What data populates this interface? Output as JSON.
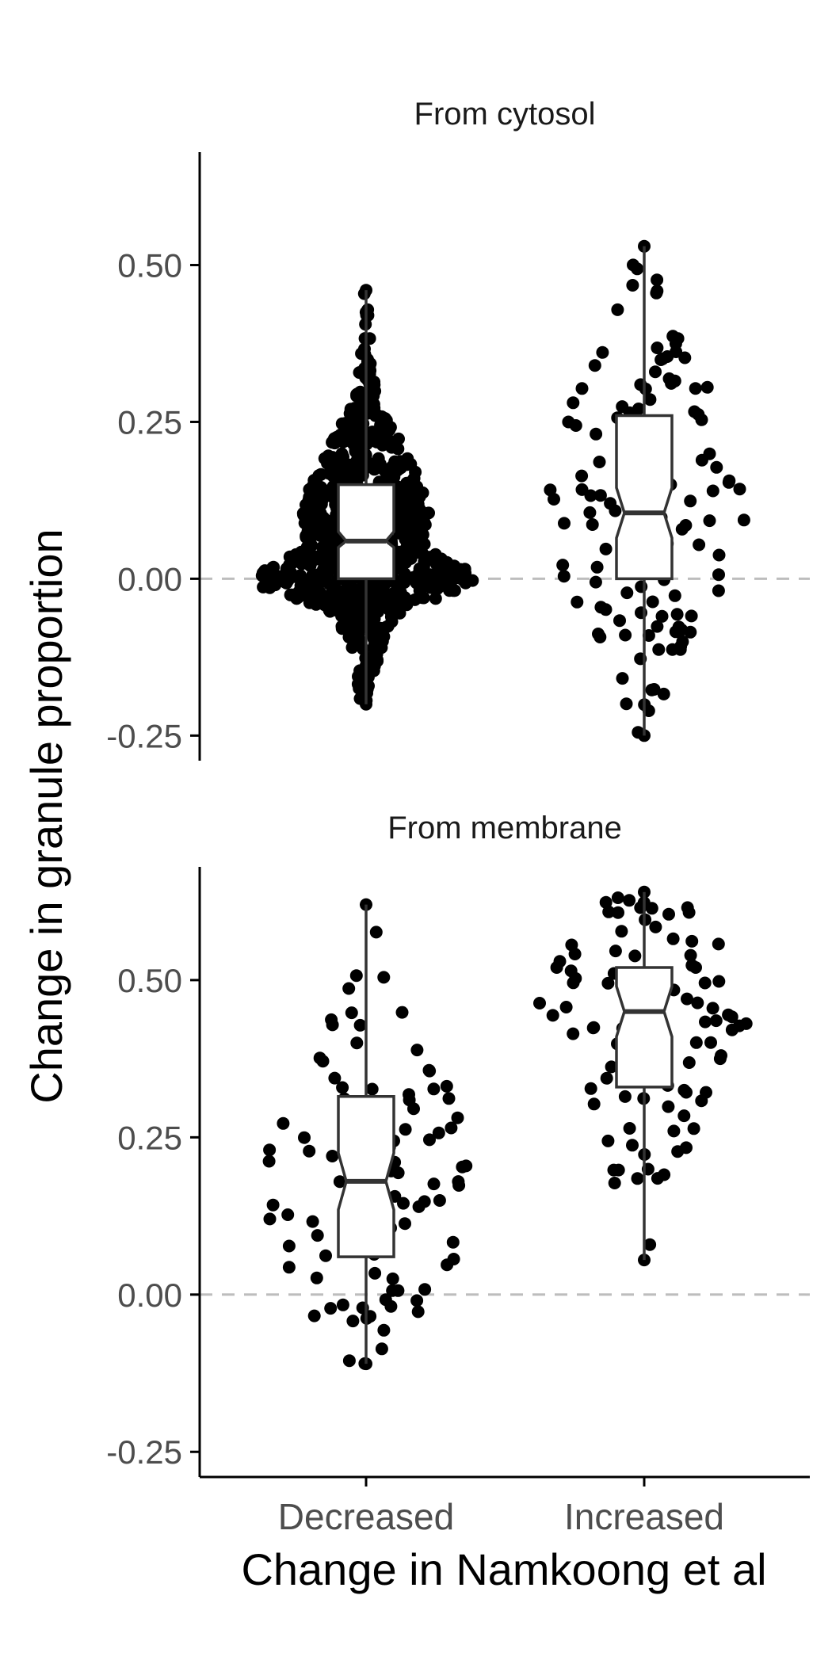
{
  "chart_data": {
    "type": "scatter",
    "subtype": "beeswarm-with-notched-boxplot",
    "xlabel": "Change in Namkoong et al",
    "ylabel": "Change in granule proportion",
    "categories": [
      "Decreased",
      "Increased"
    ],
    "yticks": [
      -0.25,
      0.0,
      0.25,
      0.5
    ],
    "ytick_labels": [
      "-0.25",
      "0.00",
      "0.25",
      "0.50"
    ],
    "reference_line": 0,
    "colors": {
      "points": "#000000",
      "box": "#333333",
      "reference": "#bdbdbd",
      "axis": "#000000"
    },
    "panels": [
      {
        "title": "From cytosol",
        "ylim": [
          -0.29,
          0.68
        ],
        "groups": [
          {
            "category": "Decreased",
            "box": {
              "min": -0.2,
              "q1": 0.0,
              "median": 0.06,
              "q3": 0.15,
              "max": 0.46,
              "notch_low": 0.05,
              "notch_high": 0.075
            },
            "density": [
              [
                -0.2,
                0.3
              ],
              [
                -0.1,
                1.0
              ],
              [
                -0.05,
                2.2
              ],
              [
                -0.01,
                6.5
              ],
              [
                0.02,
                6.0
              ],
              [
                0.05,
                3.5
              ],
              [
                0.1,
                3.8
              ],
              [
                0.15,
                3.3
              ],
              [
                0.2,
                2.4
              ],
              [
                0.25,
                1.4
              ],
              [
                0.3,
                0.6
              ],
              [
                0.35,
                0.3
              ],
              [
                0.4,
                0.2
              ],
              [
                0.46,
                0.15
              ]
            ],
            "n_points": 900
          },
          {
            "category": "Increased",
            "box": {
              "min": -0.25,
              "q1": 0.0,
              "median": 0.105,
              "q3": 0.26,
              "max": 0.53,
              "notch_low": 0.065,
              "notch_high": 0.145
            },
            "density": [
              [
                -0.25,
                0.2
              ],
              [
                -0.18,
                0.8
              ],
              [
                -0.1,
                1.6
              ],
              [
                -0.02,
                2.8
              ],
              [
                0.05,
                3.0
              ],
              [
                0.12,
                2.9
              ],
              [
                0.2,
                2.7
              ],
              [
                0.28,
                2.2
              ],
              [
                0.36,
                1.6
              ],
              [
                0.44,
                0.8
              ],
              [
                0.53,
                0.2
              ]
            ],
            "n_points": 130
          }
        ]
      },
      {
        "title": "From membrane",
        "ylim": [
          -0.29,
          0.68
        ],
        "groups": [
          {
            "category": "Decreased",
            "box": {
              "min": -0.11,
              "q1": 0.06,
              "median": 0.18,
              "q3": 0.315,
              "max": 0.62,
              "notch_low": 0.135,
              "notch_high": 0.225
            },
            "density": [
              [
                -0.11,
                0.5
              ],
              [
                -0.05,
                1.2
              ],
              [
                0.02,
                2.6
              ],
              [
                0.1,
                3.0
              ],
              [
                0.18,
                3.0
              ],
              [
                0.26,
                2.8
              ],
              [
                0.33,
                2.4
              ],
              [
                0.4,
                1.7
              ],
              [
                0.48,
                0.9
              ],
              [
                0.55,
                0.6
              ],
              [
                0.62,
                0.4
              ]
            ],
            "n_points": 95
          },
          {
            "category": "Increased",
            "box": {
              "min": 0.055,
              "q1": 0.33,
              "median": 0.45,
              "q3": 0.52,
              "max": 0.64,
              "notch_low": 0.41,
              "notch_high": 0.49
            },
            "density": [
              [
                0.055,
                0.3
              ],
              [
                0.1,
                0.4
              ],
              [
                0.18,
                0.9
              ],
              [
                0.25,
                1.4
              ],
              [
                0.32,
                1.9
              ],
              [
                0.4,
                2.6
              ],
              [
                0.46,
                3.4
              ],
              [
                0.52,
                2.8
              ],
              [
                0.58,
                2.0
              ],
              [
                0.64,
                0.8
              ]
            ],
            "n_points": 90
          }
        ]
      }
    ]
  }
}
